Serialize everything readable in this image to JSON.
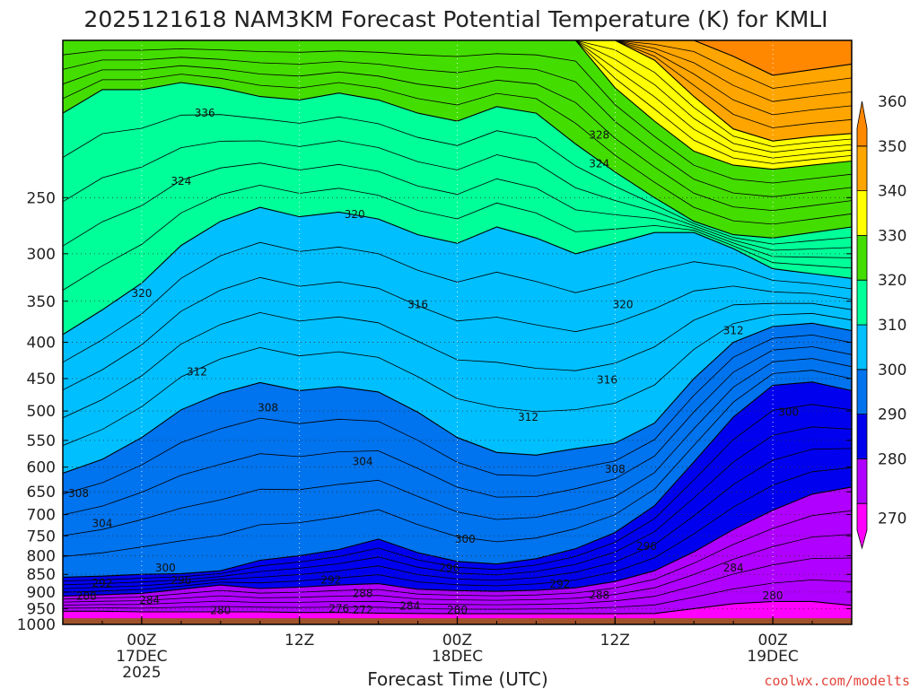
{
  "colors": {
    "ground": "#a0522d",
    "band_270": "#ff00ff",
    "band_280": "#b000ff",
    "band_290": "#0000ee",
    "band_300": "#0073ee",
    "band_310": "#00bfff",
    "band_320": "#00ff99",
    "band_330": "#44dd00",
    "band_340": "#ffff00",
    "band_350": "#ffa500",
    "band_360": "#ff8800",
    "credit": "#e2443a"
  },
  "chart_data": {
    "type": "contour",
    "title": "2025121618 NAM3KM Forecast Potential Temperature (K) for KMLI",
    "xlabel": "Forecast Time (UTC)",
    "ylabel": "",
    "credit": "coolwx.com/modelts",
    "x_hours_range": [
      -10,
      90
    ],
    "y_range_hpa": [
      1000,
      150
    ],
    "y_ticks": [
      {
        "value": 250,
        "label": "250"
      },
      {
        "value": 300,
        "label": "300"
      },
      {
        "value": 350,
        "label": "350"
      },
      {
        "value": 400,
        "label": "400"
      },
      {
        "value": 450,
        "label": "450"
      },
      {
        "value": 500,
        "label": "500"
      },
      {
        "value": 550,
        "label": "550"
      },
      {
        "value": 600,
        "label": "600"
      },
      {
        "value": 650,
        "label": "650"
      },
      {
        "value": 700,
        "label": "700"
      },
      {
        "value": 750,
        "label": "750"
      },
      {
        "value": 800,
        "label": "800"
      },
      {
        "value": 850,
        "label": "850"
      },
      {
        "value": 900,
        "label": "900"
      },
      {
        "value": 950,
        "label": "950"
      },
      {
        "value": 1000,
        "label": "1000"
      }
    ],
    "x_ticks": [
      {
        "hour": 0,
        "lines": [
          "00Z",
          "17DEC",
          "2025"
        ]
      },
      {
        "hour": 20,
        "lines": [
          "12Z"
        ]
      },
      {
        "hour": 40,
        "lines": [
          "00Z",
          "18DEC"
        ]
      },
      {
        "hour": 60,
        "lines": [
          "12Z"
        ]
      },
      {
        "hour": 80,
        "lines": [
          "00Z",
          "19DEC"
        ]
      }
    ],
    "colorbar": {
      "levels": [
        270,
        280,
        290,
        300,
        310,
        320,
        330,
        340,
        350,
        360
      ],
      "labels": [
        "270",
        "280",
        "290",
        "300",
        "310",
        "320",
        "330",
        "340",
        "350",
        "360"
      ],
      "band_colors": [
        "#ff00ff",
        "#b000ff",
        "#0000ee",
        "#0073ee",
        "#00bfff",
        "#00ff99",
        "#44dd00",
        "#ffff00",
        "#ffa500",
        "#ff8800"
      ]
    },
    "isentropes": [
      {
        "theta": 280,
        "p": [
          958,
          958,
          960,
          960,
          960,
          960,
          962,
          962,
          964,
          965,
          966,
          966,
          966,
          966,
          966,
          965,
          950,
          935,
          928,
          928,
          940
        ]
      },
      {
        "theta": 290,
        "p": [
          912,
          908,
          904,
          892,
          880,
          890,
          886,
          880,
          876,
          892,
          896,
          898,
          895,
          888,
          870,
          840,
          790,
          735,
          690,
          655,
          640
        ]
      },
      {
        "theta": 300,
        "p": [
          858,
          855,
          850,
          848,
          840,
          812,
          800,
          784,
          758,
          792,
          815,
          822,
          808,
          782,
          742,
          680,
          590,
          510,
          460,
          455,
          468
        ]
      },
      {
        "theta": 310,
        "p": [
          612,
          585,
          545,
          498,
          472,
          456,
          468,
          462,
          470,
          502,
          545,
          572,
          577,
          565,
          555,
          520,
          450,
          400,
          380,
          376,
          385
        ]
      },
      {
        "theta": 320,
        "p": [
          390,
          360,
          330,
          292,
          270,
          258,
          266,
          262,
          268,
          282,
          290,
          275,
          285,
          300,
          290,
          280,
          280,
          295,
          315,
          320,
          325
        ]
      },
      {
        "theta": 330,
        "p": [
          190,
          176,
          176,
          172,
          175,
          180,
          182,
          178,
          182,
          190,
          195,
          186,
          190,
          210,
          230,
          250,
          270,
          282,
          285,
          280,
          275
        ]
      },
      {
        "theta": 340,
        "p": [
          150,
          150,
          150,
          150,
          150,
          150,
          150,
          150,
          150,
          150,
          150,
          150,
          150,
          150,
          175,
          195,
          215,
          225,
          228,
          225,
          222
        ]
      },
      {
        "theta": 350,
        "p": [
          150,
          150,
          150,
          150,
          150,
          150,
          150,
          150,
          150,
          150,
          150,
          150,
          150,
          150,
          150,
          160,
          180,
          200,
          208,
          205,
          203
        ]
      },
      {
        "theta": 360,
        "p": [
          150,
          150,
          150,
          150,
          150,
          150,
          150,
          150,
          150,
          150,
          150,
          150,
          150,
          150,
          150,
          150,
          150,
          158,
          168,
          165,
          162
        ]
      }
    ],
    "contour_labels": [
      {
        "text": "336",
        "hour": 8,
        "p": 190
      },
      {
        "text": "324",
        "hour": 5,
        "p": 237
      },
      {
        "text": "320",
        "hour": 27,
        "p": 264
      },
      {
        "text": "328",
        "hour": 58,
        "p": 204
      },
      {
        "text": "324",
        "hour": 58,
        "p": 224
      },
      {
        "text": "320",
        "hour": 0,
        "p": 341
      },
      {
        "text": "316",
        "hour": 35,
        "p": 354
      },
      {
        "text": "320",
        "hour": 61,
        "p": 354
      },
      {
        "text": "312",
        "hour": 75,
        "p": 385
      },
      {
        "text": "312",
        "hour": 7,
        "p": 440
      },
      {
        "text": "316",
        "hour": 59,
        "p": 452
      },
      {
        "text": "308",
        "hour": 16,
        "p": 495
      },
      {
        "text": "312",
        "hour": 49,
        "p": 510
      },
      {
        "text": "300",
        "hour": 82,
        "p": 502
      },
      {
        "text": "304",
        "hour": 28,
        "p": 589
      },
      {
        "text": "308",
        "hour": 60,
        "p": 604
      },
      {
        "text": "308",
        "hour": -8,
        "p": 653
      },
      {
        "text": "304",
        "hour": -5,
        "p": 720
      },
      {
        "text": "300",
        "hour": 41,
        "p": 758
      },
      {
        "text": "296",
        "hour": 64,
        "p": 776
      },
      {
        "text": "300",
        "hour": 3,
        "p": 832
      },
      {
        "text": "296",
        "hour": 39,
        "p": 832
      },
      {
        "text": "284",
        "hour": 75,
        "p": 832
      },
      {
        "text": "292",
        "hour": 24,
        "p": 866
      },
      {
        "text": "296",
        "hour": 5,
        "p": 867
      },
      {
        "text": "292",
        "hour": -5,
        "p": 874
      },
      {
        "text": "292",
        "hour": 53,
        "p": 877
      },
      {
        "text": "288",
        "hour": -7,
        "p": 912
      },
      {
        "text": "288",
        "hour": 28,
        "p": 904
      },
      {
        "text": "288",
        "hour": 58,
        "p": 909
      },
      {
        "text": "280",
        "hour": 80,
        "p": 911
      },
      {
        "text": "284",
        "hour": 1,
        "p": 924
      },
      {
        "text": "284",
        "hour": 34,
        "p": 942
      },
      {
        "text": "276",
        "hour": 25,
        "p": 950
      },
      {
        "text": "272",
        "hour": 28,
        "p": 955
      },
      {
        "text": "280",
        "hour": 10,
        "p": 956
      },
      {
        "text": "280",
        "hour": 40,
        "p": 954
      }
    ]
  }
}
